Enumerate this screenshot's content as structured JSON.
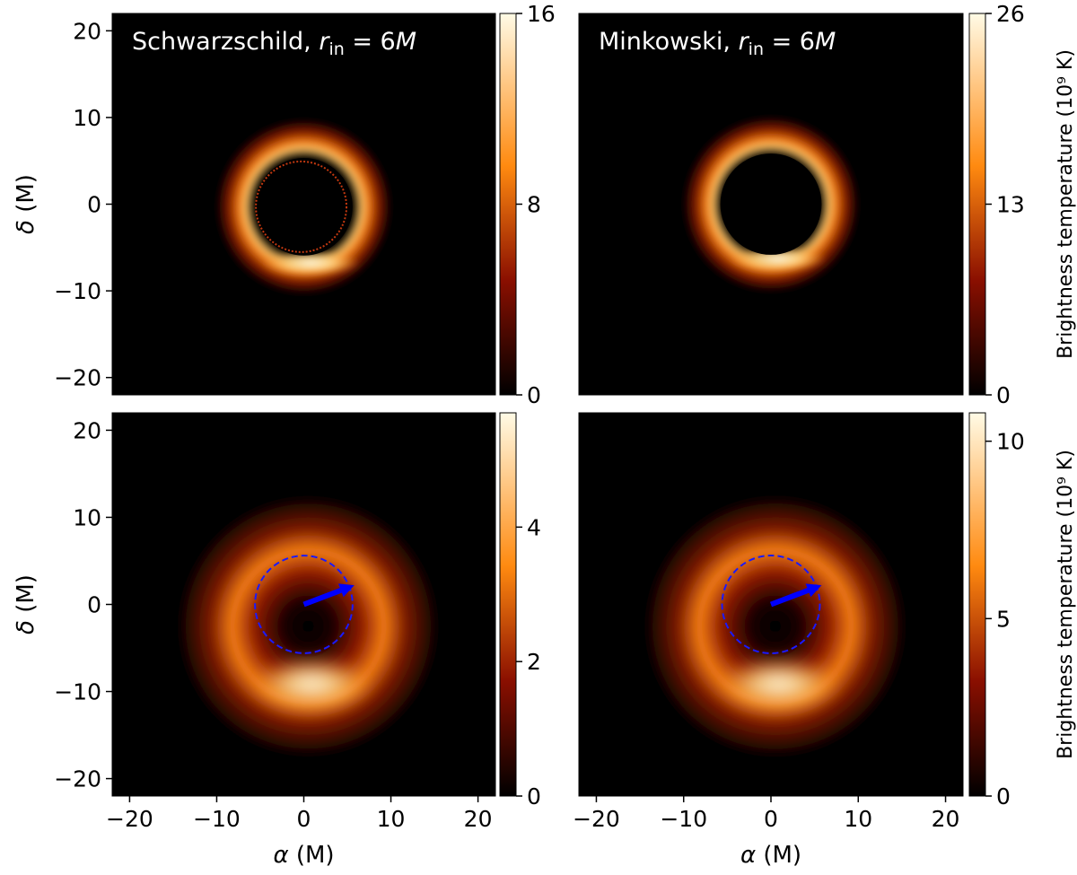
{
  "chart_data": [
    {
      "type": "heatmap",
      "title": "Schwarzschild, r_in = 6M",
      "title_parts": {
        "prefix": "Schwarzschild, ",
        "var": "r",
        "sub": "in",
        "suffix": " = 6M"
      },
      "xlabel": "",
      "ylabel": "δ (M)",
      "xlim": [
        -22,
        22
      ],
      "ylim": [
        -22,
        22
      ],
      "y_ticks": [
        -20,
        -10,
        0,
        10,
        20
      ],
      "x_ticks": [],
      "colormap": "afmhot",
      "colorbar": {
        "min": 0,
        "max": 16,
        "ticks": [
          0,
          8,
          16
        ],
        "label": ""
      },
      "ring": {
        "center": [
          0,
          -0.3
        ],
        "inner_radius": 5.6,
        "outer_radius": 10,
        "peak_radius": 6.8,
        "bright_side": "bottom",
        "photon_ring_radius": 5.2
      },
      "annotations": []
    },
    {
      "type": "heatmap",
      "title": "Minkowski, r_in = 6M",
      "title_parts": {
        "prefix": "Minkowski, ",
        "var": "r",
        "sub": "in",
        "suffix": " = 6M"
      },
      "xlabel": "",
      "ylabel": "",
      "xlim": [
        -22,
        22
      ],
      "ylim": [
        -22,
        22
      ],
      "y_ticks": [],
      "x_ticks": [],
      "colormap": "afmhot",
      "colorbar": {
        "min": 0,
        "max": 26,
        "ticks": [
          0,
          13,
          26
        ],
        "label": "Brightness temperature (10⁹ K)"
      },
      "ring": {
        "center": [
          0,
          0
        ],
        "inner_radius": 5.8,
        "outer_radius": 10,
        "peak_radius": 6.6,
        "bright_side": "bottom"
      },
      "annotations": []
    },
    {
      "type": "heatmap",
      "title": "",
      "xlabel": "α (M)",
      "ylabel": "δ (M)",
      "xlim": [
        -22,
        22
      ],
      "ylim": [
        -22,
        22
      ],
      "y_ticks": [
        -20,
        -10,
        0,
        10,
        20
      ],
      "x_ticks": [
        -20,
        -10,
        0,
        10,
        20
      ],
      "colormap": "afmhot",
      "colorbar": {
        "min": 0,
        "max": 5.7,
        "ticks": [
          0,
          2,
          4
        ],
        "label": ""
      },
      "ring": {
        "center": [
          0.5,
          -2.5
        ],
        "inner_radius": 0,
        "outer_radius": 15,
        "peak_radius": 8.5,
        "bright_side": "bottom"
      },
      "annotations": [
        {
          "type": "circle",
          "center": [
            0,
            0
          ],
          "radius": 5.6,
          "style": "dashed",
          "color": "#1a1aff"
        },
        {
          "type": "arrow",
          "from": [
            0,
            0
          ],
          "to": [
            5.8,
            2.2
          ],
          "color": "#0000ff"
        }
      ]
    },
    {
      "type": "heatmap",
      "title": "",
      "xlabel": "α (M)",
      "ylabel": "",
      "xlim": [
        -22,
        22
      ],
      "ylim": [
        -22,
        22
      ],
      "y_ticks": [],
      "x_ticks": [
        -20,
        -10,
        0,
        10,
        20
      ],
      "colormap": "afmhot",
      "colorbar": {
        "min": 0,
        "max": 10.8,
        "ticks": [
          0,
          5,
          10
        ],
        "label": "Brightness temperature (10⁹ K)"
      },
      "ring": {
        "center": [
          0.5,
          -2.5
        ],
        "inner_radius": 0,
        "outer_radius": 15,
        "peak_radius": 8.5,
        "bright_side": "bottom"
      },
      "annotations": [
        {
          "type": "circle",
          "center": [
            0,
            0
          ],
          "radius": 5.6,
          "style": "dashed",
          "color": "#1a1aff"
        },
        {
          "type": "arrow",
          "from": [
            0,
            0
          ],
          "to": [
            5.8,
            2.2
          ],
          "color": "#0000ff"
        }
      ]
    }
  ]
}
